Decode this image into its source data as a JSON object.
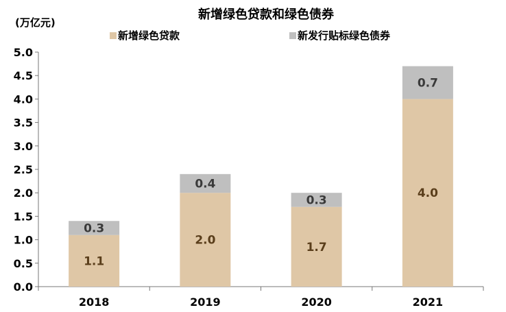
{
  "chart_data": {
    "type": "bar",
    "stacked": true,
    "title": "新增绿色贷款和绿色债券",
    "unit_label": "(万亿元)",
    "categories": [
      "2018",
      "2019",
      "2020",
      "2021"
    ],
    "series": [
      {
        "name": "新增绿色贷款",
        "values": [
          1.1,
          2.0,
          1.7,
          4.0
        ],
        "color": "#dfc7a6"
      },
      {
        "name": "新发行贴标绿色债券",
        "values": [
          0.3,
          0.4,
          0.3,
          0.7
        ],
        "color": "#bfbfbf"
      }
    ],
    "data_labels": {
      "新增绿色贷款": [
        "1.1",
        "2.0",
        "1.7",
        "4.0"
      ],
      "新发行贴标绿色债券": [
        "0.3",
        "0.4",
        "0.3",
        "0.7"
      ]
    },
    "ylim": [
      0,
      5
    ],
    "y_ticks": [
      "0.0",
      "0.5",
      "1.0",
      "1.5",
      "2.0",
      "2.5",
      "3.0",
      "3.5",
      "4.0",
      "4.5",
      "5.0"
    ],
    "grid": false,
    "legend_position": "top"
  }
}
